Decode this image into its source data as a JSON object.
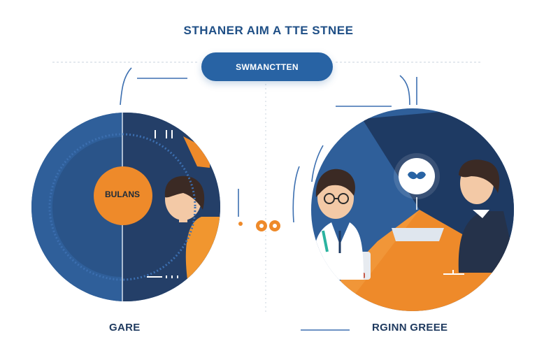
{
  "header": {
    "title": "STHANER AIM A TTE STNEE"
  },
  "pill": {
    "label": "SWMANCTTEN"
  },
  "left_panel": {
    "badge_label": "BULANS",
    "caption": "GARE"
  },
  "right_panel": {
    "caption": "RGINN GREEE"
  },
  "colors": {
    "navy": "#1e3a63",
    "blue": "#2f5f9a",
    "orange": "#ee8a2a",
    "accent_blue": "#2863a4"
  }
}
